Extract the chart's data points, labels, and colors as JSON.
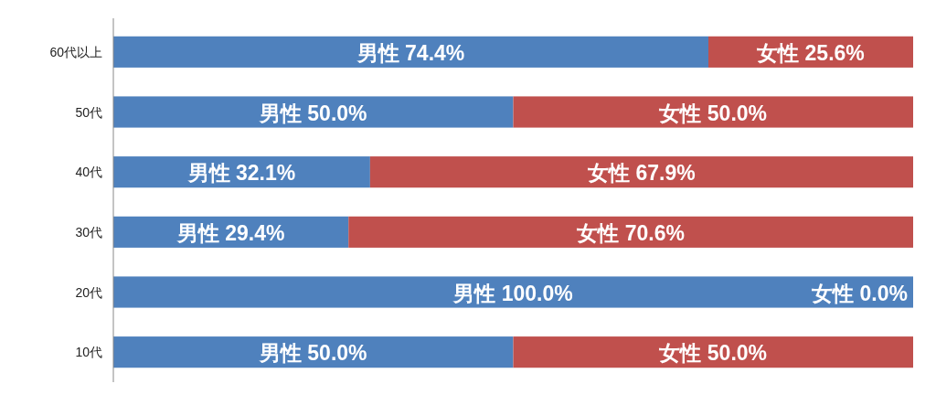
{
  "chart_data": {
    "type": "bar",
    "orientation": "horizontal",
    "stacked": true,
    "categories": [
      "60代以上",
      "50代",
      "40代",
      "30代",
      "20代",
      "10代"
    ],
    "series": [
      {
        "color": "#4f81bd",
        "values": [
          74.4,
          50.0,
          32.1,
          29.4,
          100.0,
          50.0
        ],
        "value_labels": [
          "男性 74.4%",
          "男性 50.0%",
          "男性 32.1%",
          "男性 29.4%",
          "男性 100.0%",
          "男性 50.0%"
        ]
      },
      {
        "color": "#c0504d",
        "values": [
          25.6,
          50.0,
          67.9,
          70.6,
          0.0,
          50.0
        ],
        "value_labels": [
          "女性 25.6%",
          "女性 50.0%",
          "女性 67.9%",
          "女性 70.6%",
          "女性 0.0%",
          "女性 50.0%"
        ]
      }
    ]
  }
}
